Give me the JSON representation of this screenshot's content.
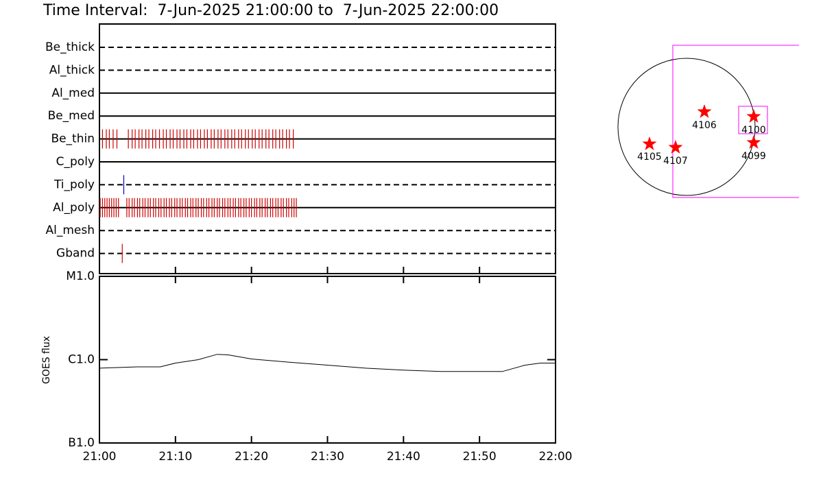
{
  "chart_data": [
    {
      "type": "timeline",
      "title": "Time Interval:  7-Jun-2025 21:00:00 to  7-Jun-2025 22:00:00",
      "xlim": [
        0,
        60
      ],
      "series": [
        {
          "name": "Be_thick",
          "line": "dashed",
          "color": "#cc0000",
          "x": []
        },
        {
          "name": "Al_thick",
          "line": "dashed",
          "color": "#cc0000",
          "x": []
        },
        {
          "name": "Al_med",
          "line": "solid",
          "color": "#cc0000",
          "x": []
        },
        {
          "name": "Be_med",
          "line": "solid",
          "color": "#cc0000",
          "x": []
        },
        {
          "name": "Be_thin",
          "line": "solid",
          "color": "#cc0000",
          "x": [
            0.4,
            0.9,
            1.3,
            1.8,
            2.3,
            3.8,
            4.3,
            4.7,
            5.2,
            5.6,
            6.1,
            6.5,
            7.0,
            7.4,
            7.9,
            8.4,
            8.8,
            9.3,
            9.7,
            10.2,
            10.6,
            11.1,
            11.5,
            12.0,
            12.4,
            12.9,
            13.3,
            13.8,
            14.2,
            14.7,
            15.1,
            15.6,
            16.0,
            16.5,
            16.9,
            17.4,
            17.8,
            18.3,
            18.7,
            19.2,
            19.6,
            20.1,
            20.5,
            21.0,
            21.4,
            21.9,
            22.3,
            22.8,
            23.2,
            23.7,
            24.1,
            24.6,
            25.0,
            25.5
          ]
        },
        {
          "name": "C_poly",
          "line": "solid",
          "color": "#cc0000",
          "x": []
        },
        {
          "name": "Ti_poly",
          "line": "dashed",
          "color": "#0000cc",
          "x": [
            3.2
          ]
        },
        {
          "name": "Al_poly",
          "line": "solid",
          "color": "#cc0000",
          "x": [
            0.1,
            0.4,
            0.7,
            1.0,
            1.3,
            1.6,
            1.9,
            2.2,
            2.5,
            3.6,
            3.9,
            4.3,
            4.6,
            5.0,
            5.3,
            5.7,
            6.0,
            6.4,
            6.7,
            7.1,
            7.4,
            7.8,
            8.1,
            8.5,
            8.8,
            9.2,
            9.5,
            9.9,
            10.2,
            10.6,
            10.9,
            11.3,
            11.6,
            12.0,
            12.3,
            12.7,
            13.0,
            13.4,
            13.7,
            14.1,
            14.4,
            14.8,
            15.1,
            15.5,
            15.8,
            16.2,
            16.5,
            16.9,
            17.2,
            17.6,
            17.9,
            18.3,
            18.6,
            19.0,
            19.3,
            19.7,
            20.0,
            20.4,
            20.7,
            21.1,
            21.4,
            21.8,
            22.1,
            22.5,
            22.8,
            23.2,
            23.5,
            23.9,
            24.2,
            24.6,
            24.9,
            25.3,
            25.6,
            25.9
          ]
        },
        {
          "name": "Al_mesh",
          "line": "dashed",
          "color": "#cc0000",
          "x": []
        },
        {
          "name": "Gband",
          "line": "dashed",
          "color": "#cc0000",
          "x": [
            3.0
          ]
        }
      ]
    },
    {
      "type": "line",
      "ylabel": "GOES flux",
      "log_y": true,
      "xlim": [
        0,
        60
      ],
      "xticks": [
        {
          "value": 0,
          "label": "21:00"
        },
        {
          "value": 10,
          "label": "21:10"
        },
        {
          "value": 20,
          "label": "21:20"
        },
        {
          "value": 30,
          "label": "21:30"
        },
        {
          "value": 40,
          "label": "21:40"
        },
        {
          "value": 50,
          "label": "21:50"
        },
        {
          "value": 60,
          "label": "22:00"
        }
      ],
      "ylim": [
        1e-07,
        1e-05
      ],
      "yticks": [
        {
          "value": 1e-07,
          "label": "B1.0"
        },
        {
          "value": 1e-06,
          "label": "C1.0"
        },
        {
          "value": 1e-05,
          "label": "M1.0"
        }
      ],
      "series": [
        {
          "color": "#000000",
          "x": [
            0,
            5,
            8,
            10,
            13,
            15.5,
            17,
            20,
            25,
            30,
            35,
            40,
            45,
            50,
            53,
            56,
            58,
            60
          ],
          "values": [
            7.9e-07,
            8.2e-07,
            8.2e-07,
            9.1e-07,
            1e-06,
            1.16e-06,
            1.14e-06,
            1.02e-06,
            9.3e-07,
            8.6e-07,
            7.9e-07,
            7.5e-07,
            7.2e-07,
            7.2e-07,
            7.2e-07,
            8.6e-07,
            9.1e-07,
            9.1e-07
          ]
        }
      ]
    }
  ],
  "sun_map": {
    "regions": [
      {
        "label": "4106"
      },
      {
        "label": "4100"
      },
      {
        "label": "4105"
      },
      {
        "label": "4107"
      },
      {
        "label": "4099"
      }
    ]
  }
}
